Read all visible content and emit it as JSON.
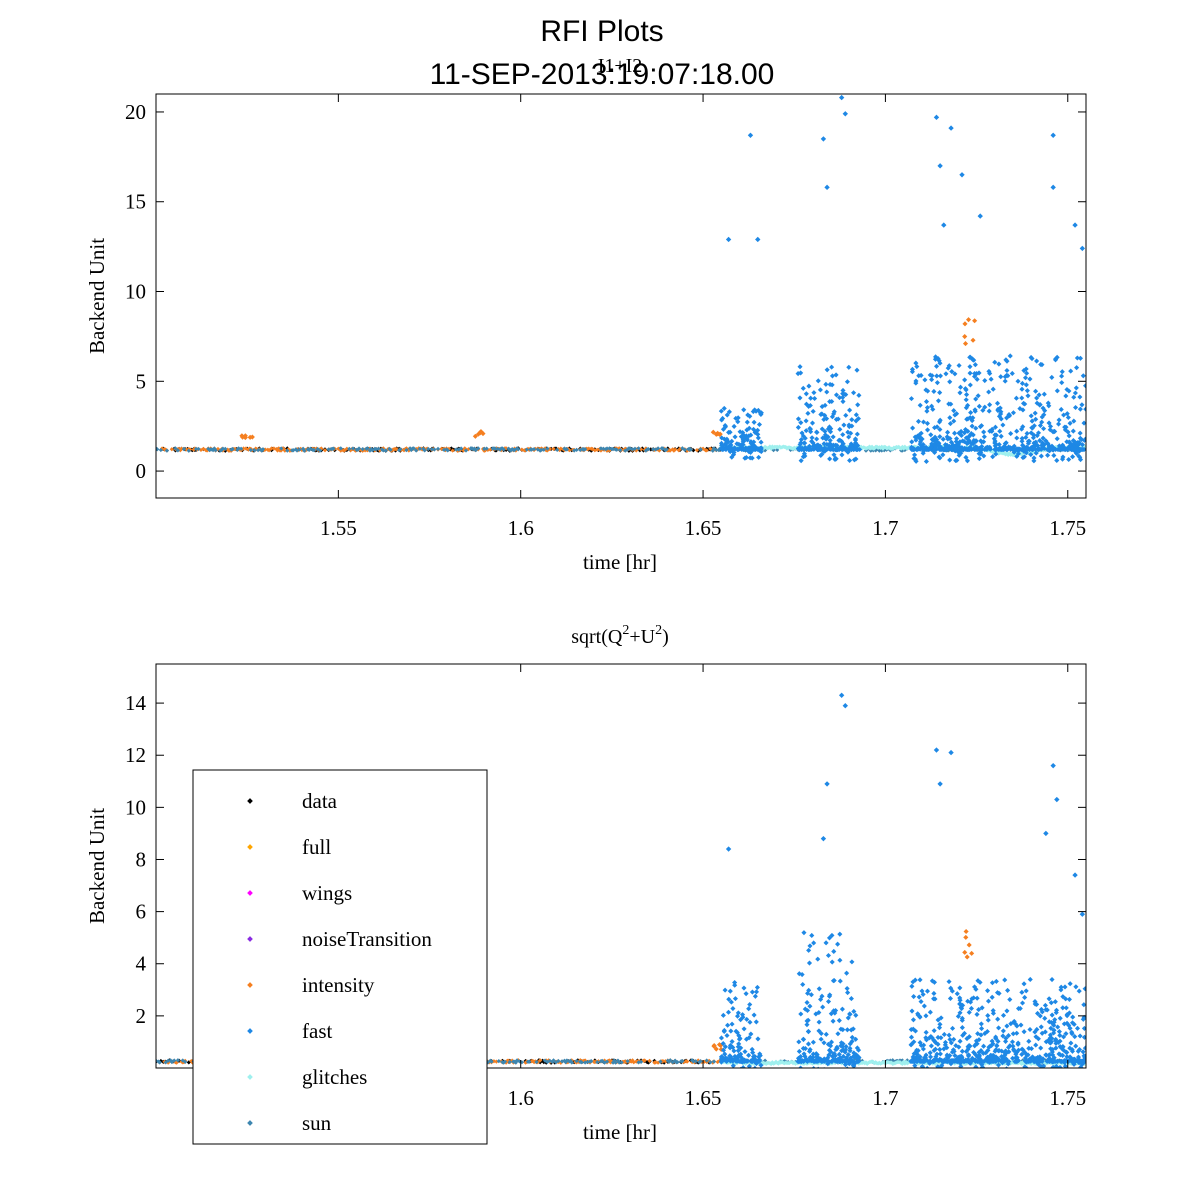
{
  "figure": {
    "title": "RFI Plots",
    "subtitle": "11-SEP-2013:19:07:18.00"
  },
  "colors": {
    "data": "#000000",
    "full": "#ffa500",
    "wings": "#ff00ff",
    "noiseTransition": "#8a2be2",
    "intensity": "#f57f20",
    "fast": "#1e88e5",
    "glitches": "#9ff0ee",
    "sun": "#3d86b0"
  },
  "chart_data": [
    {
      "type": "scatter",
      "title": "I1+I2",
      "xlabel": "time [hr]",
      "ylabel": "Backend Unit",
      "xlim": [
        1.5,
        1.755
      ],
      "ylim": [
        -1.5,
        21
      ],
      "xticks": [
        1.55,
        1.6,
        1.65,
        1.7,
        1.75
      ],
      "xtick_labels": [
        "1.55",
        "1.6",
        "1.65",
        "1.7",
        "1.75"
      ],
      "yticks": [
        0,
        5,
        10,
        15,
        20
      ],
      "ytick_labels": [
        "0",
        "5",
        "10",
        "15",
        "20"
      ],
      "grid": false,
      "baseline": 1.2,
      "series": [
        {
          "name": "data",
          "segments": [
            [
              1.5,
              1.655
            ]
          ],
          "level": 1.2
        },
        {
          "name": "intensity",
          "segments": [
            [
              1.5,
              1.655
            ]
          ],
          "level": 1.2,
          "bumps": [
            [
              1.525,
              2.1
            ],
            [
              1.589,
              2.2
            ],
            [
              1.654,
              2.2
            ],
            [
              1.723,
              9.0
            ]
          ]
        },
        {
          "name": "sun",
          "segments": [
            [
              1.5,
              1.655
            ],
            [
              1.66,
              1.755
            ]
          ],
          "level": 1.2
        },
        {
          "name": "glitches",
          "segments": [
            [
              1.655,
              1.755
            ]
          ],
          "level": 1.3,
          "dip": [
            1.735,
            0.9
          ]
        },
        {
          "name": "fast",
          "bursts": [
            [
              1.655,
              1.666,
              3.0,
              13.0
            ],
            [
              1.676,
              1.693,
              4.5,
              20.8
            ],
            [
              1.707,
              1.755,
              5.0,
              19.7
            ]
          ],
          "peaks": [
            [
              1.657,
              12.9
            ],
            [
              1.663,
              18.7
            ],
            [
              1.665,
              12.9
            ],
            [
              1.683,
              18.5
            ],
            [
              1.684,
              15.8
            ],
            [
              1.688,
              20.8
            ],
            [
              1.689,
              19.9
            ],
            [
              1.714,
              19.7
            ],
            [
              1.718,
              19.1
            ],
            [
              1.715,
              17.0
            ],
            [
              1.721,
              16.5
            ],
            [
              1.746,
              18.7
            ],
            [
              1.746,
              15.8
            ],
            [
              1.754,
              12.4
            ],
            [
              1.726,
              14.2
            ],
            [
              1.716,
              13.7
            ],
            [
              1.752,
              13.7
            ]
          ]
        }
      ]
    },
    {
      "type": "scatter",
      "title": "sqrt(Q2+U2)",
      "title_main": "sqrt(Q",
      "title_sup1": "2",
      "title_mid": "+U",
      "title_sup2": "2",
      "title_end": ")",
      "xlabel": "time [hr]",
      "ylabel": "Backend Unit",
      "xlim": [
        1.5,
        1.755
      ],
      "ylim": [
        0,
        15.5
      ],
      "xticks": [
        1.6,
        1.65,
        1.7,
        1.75
      ],
      "xtick_labels": [
        "1.6",
        "1.65",
        "1.7",
        "1.75"
      ],
      "yticks": [
        2,
        4,
        6,
        8,
        10,
        12,
        14
      ],
      "ytick_labels": [
        "2",
        "4",
        "6",
        "8",
        "10",
        "12",
        "14"
      ],
      "grid": false,
      "baseline": 0.25,
      "legend_position": "lower-left",
      "legend": [
        "data",
        "full",
        "wings",
        "noiseTransition",
        "intensity",
        "fast",
        "glitches",
        "sun"
      ],
      "series": [
        {
          "name": "data",
          "segments": [
            [
              1.5,
              1.655
            ]
          ],
          "level": 0.25
        },
        {
          "name": "intensity",
          "segments": [
            [
              1.5,
              1.655
            ]
          ],
          "level": 0.25,
          "bumps": [
            [
              1.654,
              0.9
            ],
            [
              1.723,
              5.3
            ]
          ]
        },
        {
          "name": "sun",
          "segments": [
            [
              1.5,
              1.655
            ],
            [
              1.66,
              1.755
            ]
          ],
          "level": 0.25
        },
        {
          "name": "glitches",
          "segments": [
            [
              1.655,
              1.755
            ]
          ],
          "level": 0.2
        },
        {
          "name": "fast",
          "bursts": [
            [
              1.655,
              1.666,
              2.5,
              8.4
            ],
            [
              1.676,
              1.693,
              4.0,
              14.3
            ],
            [
              1.707,
              1.755,
              2.5,
              12.2
            ]
          ],
          "peaks": [
            [
              1.657,
              8.4
            ],
            [
              1.688,
              14.3
            ],
            [
              1.689,
              13.9
            ],
            [
              1.684,
              10.9
            ],
            [
              1.683,
              8.8
            ],
            [
              1.714,
              12.2
            ],
            [
              1.718,
              12.1
            ],
            [
              1.746,
              11.6
            ],
            [
              1.747,
              10.3
            ],
            [
              1.744,
              9.0
            ],
            [
              1.715,
              10.9
            ],
            [
              1.752,
              7.4
            ],
            [
              1.754,
              5.9
            ]
          ]
        }
      ]
    }
  ]
}
